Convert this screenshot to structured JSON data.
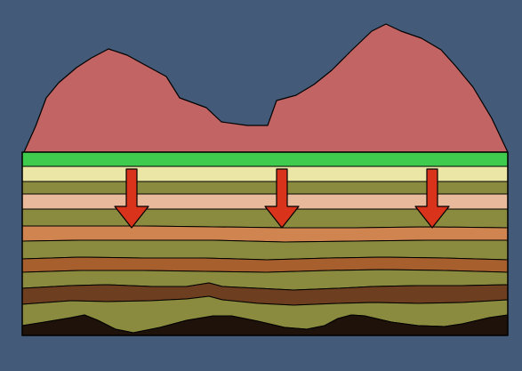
{
  "colors": {
    "background": "#435a78",
    "mountain": "#c26463",
    "topsoil_green": "#3fcc4e",
    "cream": "#ece6a6",
    "olive": "#8b8b3f",
    "peach": "#e8b99a",
    "orange": "#d0844f",
    "rust": "#a75f2e",
    "brown_dark": "#6d3e1f",
    "bedrock": "#1f120b",
    "arrow": "#d9331c",
    "outline": "#000000"
  },
  "diagram": {
    "mountain_present": true,
    "arrow_count": 3,
    "arrow_direction": "down",
    "layer_count": 12
  }
}
